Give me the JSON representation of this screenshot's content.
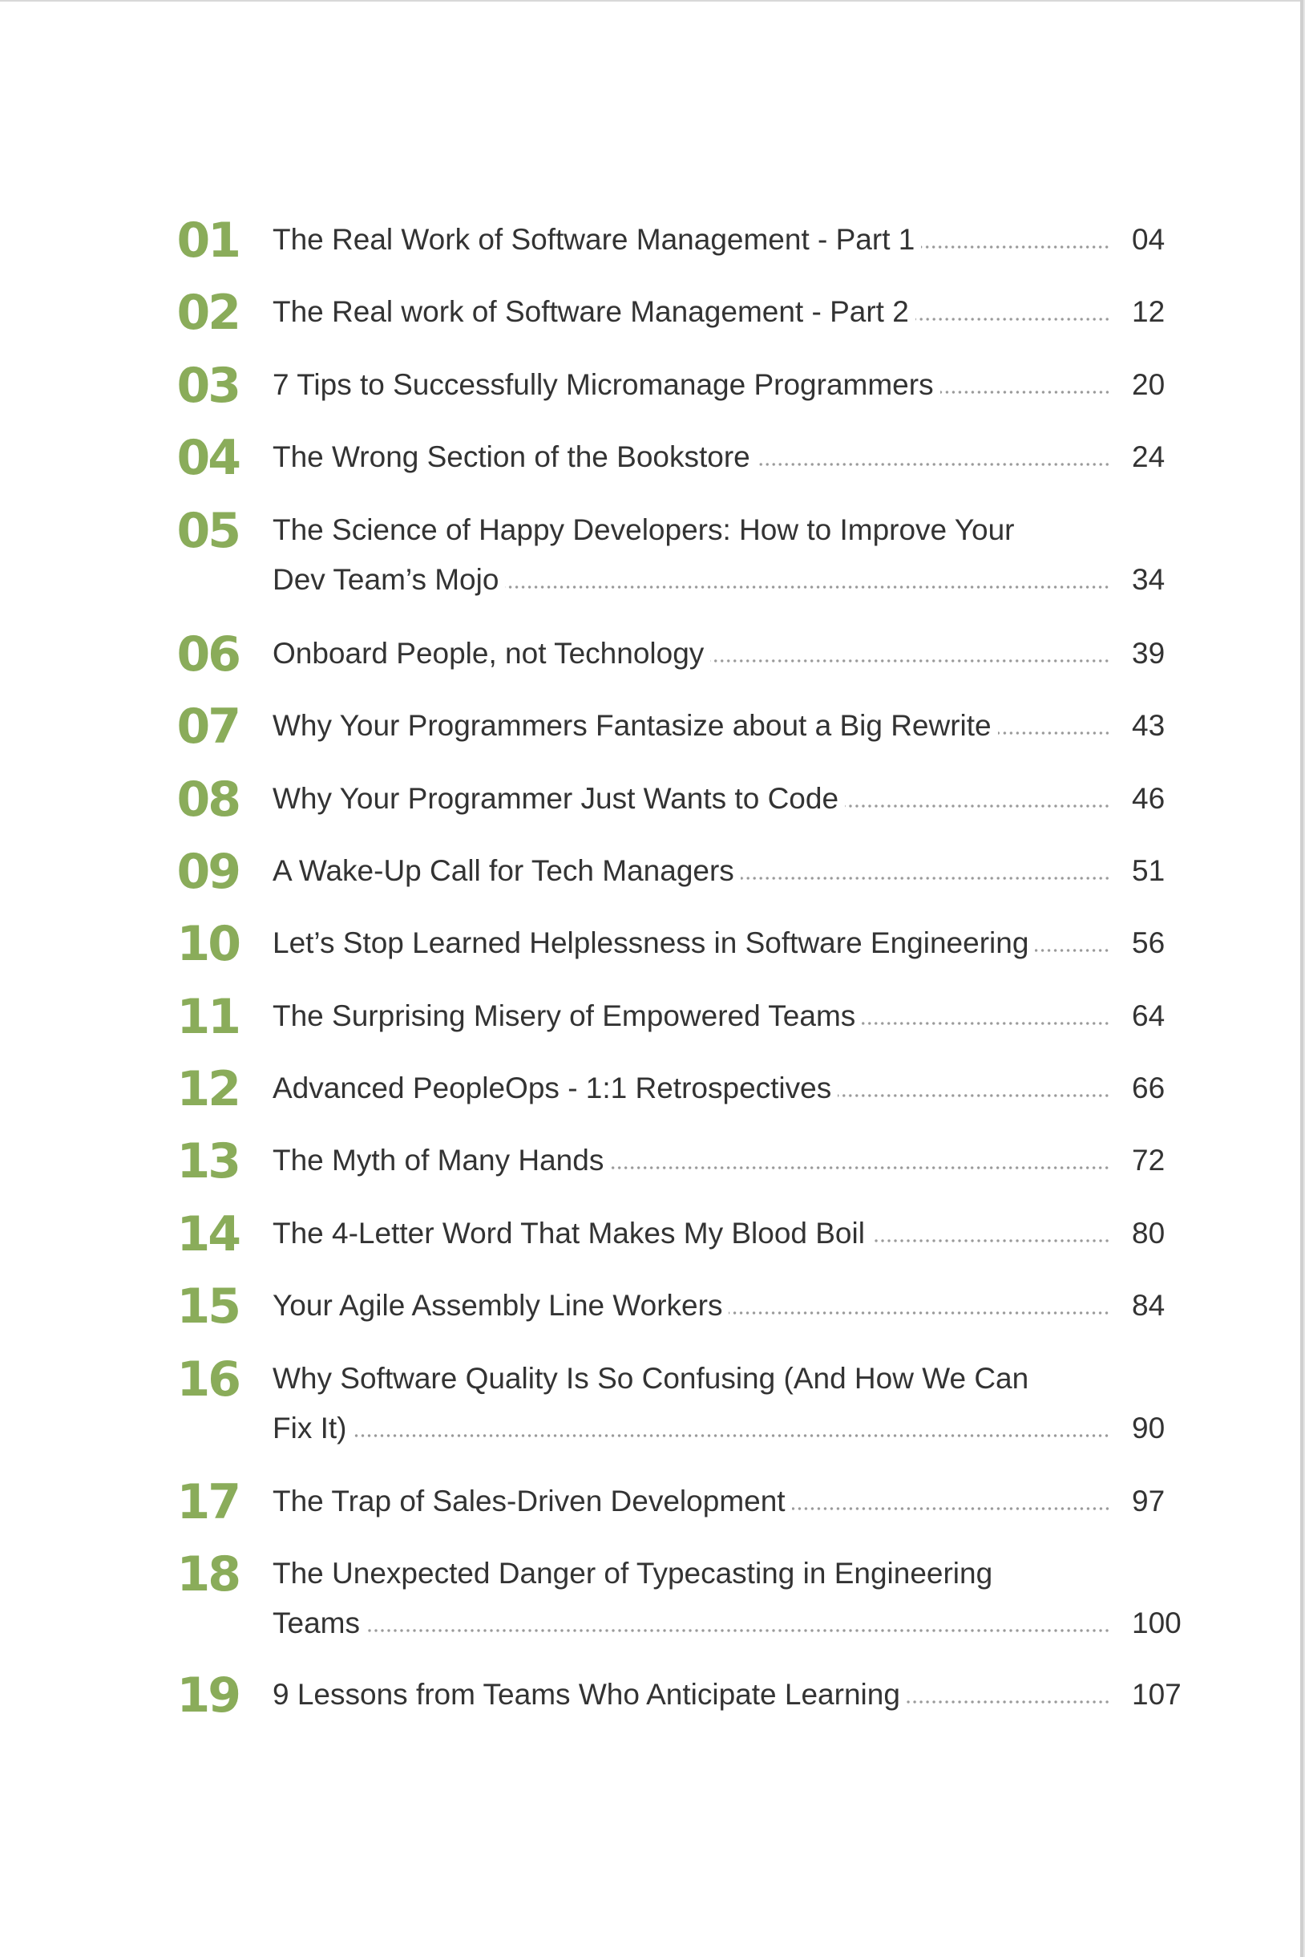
{
  "document": {
    "type": "table-of-contents",
    "accent_color": "#8aac5a",
    "text_color": "#333333",
    "leader_color": "#9a9a9a"
  },
  "toc": {
    "entries": [
      {
        "number": "01",
        "lines": [
          "The Real Work of Software Management - Part 1"
        ],
        "page": "04"
      },
      {
        "number": "02",
        "lines": [
          "The Real work of Software Management - Part 2"
        ],
        "page": "12"
      },
      {
        "number": "03",
        "lines": [
          "7 Tips to Successfully Micromanage Programmers"
        ],
        "page": "20"
      },
      {
        "number": "04",
        "lines": [
          "The Wrong Section of the Bookstore"
        ],
        "page": "24"
      },
      {
        "number": "05",
        "lines": [
          "The Science of Happy Developers: How to Improve Your",
          "Dev Team’s Mojo"
        ],
        "page": "34"
      },
      {
        "number": "06",
        "lines": [
          "Onboard People, not Technology"
        ],
        "page": "39"
      },
      {
        "number": "07",
        "lines": [
          "Why Your Programmers Fantasize about a Big Rewrite"
        ],
        "page": "43"
      },
      {
        "number": "08",
        "lines": [
          "Why Your Programmer Just Wants to Code"
        ],
        "page": "46"
      },
      {
        "number": "09",
        "lines": [
          "A Wake-Up Call for Tech Managers"
        ],
        "page": "51"
      },
      {
        "number": "10",
        "lines": [
          "Let’s Stop Learned Helplessness in Software Engineering"
        ],
        "page": "56"
      },
      {
        "number": "11",
        "lines": [
          "The Surprising Misery of Empowered Teams"
        ],
        "page": "64"
      },
      {
        "number": "12",
        "lines": [
          "Advanced PeopleOps - 1:1 Retrospectives"
        ],
        "page": "66"
      },
      {
        "number": "13",
        "lines": [
          "The Myth of Many Hands"
        ],
        "page": "72"
      },
      {
        "number": "14",
        "lines": [
          "The 4-Letter Word That Makes My Blood Boil"
        ],
        "page": "80"
      },
      {
        "number": "15",
        "lines": [
          "Your Agile Assembly Line Workers"
        ],
        "page": "84"
      },
      {
        "number": "16",
        "lines": [
          "Why Software Quality Is So Confusing (And How We Can",
          "Fix It)"
        ],
        "page": "90"
      },
      {
        "number": "17",
        "lines": [
          "The Trap of Sales-Driven Development"
        ],
        "page": "97"
      },
      {
        "number": "18",
        "lines": [
          "The Unexpected Danger of Typecasting in Engineering",
          "Teams"
        ],
        "page": "100"
      },
      {
        "number": "19",
        "lines": [
          "9 Lessons from Teams Who Anticipate Learning"
        ],
        "page": "107"
      }
    ]
  }
}
